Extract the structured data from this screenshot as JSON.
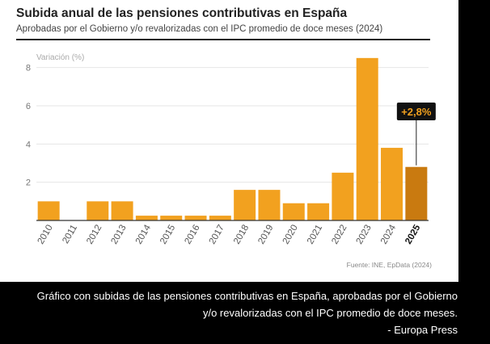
{
  "card": {
    "title": "Subida anual de las pensiones contributivas en España",
    "subtitle": "Aprobadas por el Gobierno y/o revalorizadas con el IPC promedio de doce meses (2024)",
    "source": "Fuente: INE, EpData (2024)"
  },
  "caption": {
    "line1": "Gráfico con subidas de las pensiones contributivas en España, aprobadas por el Gobierno",
    "line2": "y/o revalorizadas con el IPC promedio de doce meses.",
    "credit": "- Europa Press"
  },
  "chart_data": {
    "type": "bar",
    "title": "Subida anual de las pensiones contributivas en España",
    "subtitle": "Aprobadas por el Gobierno y/o revalorizadas con el IPC promedio de doce meses (2024)",
    "ylabel": "Variación (%)",
    "xlabel": "",
    "ylim": [
      0,
      9
    ],
    "yticks": [
      2,
      4,
      6,
      8
    ],
    "grid": true,
    "categories": [
      "2010",
      "2011",
      "2012",
      "2013",
      "2014",
      "2015",
      "2016",
      "2017",
      "2018",
      "2019",
      "2020",
      "2021",
      "2022",
      "2023",
      "2024",
      "2025"
    ],
    "values": [
      1,
      0,
      1,
      1,
      0.25,
      0.25,
      0.25,
      0.25,
      1.6,
      1.6,
      0.9,
      0.9,
      2.5,
      8.5,
      3.8,
      2.8
    ],
    "highlight": {
      "category": "2025",
      "label": "+2,8%"
    },
    "colors": {
      "bar": "#F2A11F",
      "highlight": "#C97A10",
      "label_bg": "#111111",
      "label_text": "#F2A11F"
    }
  }
}
